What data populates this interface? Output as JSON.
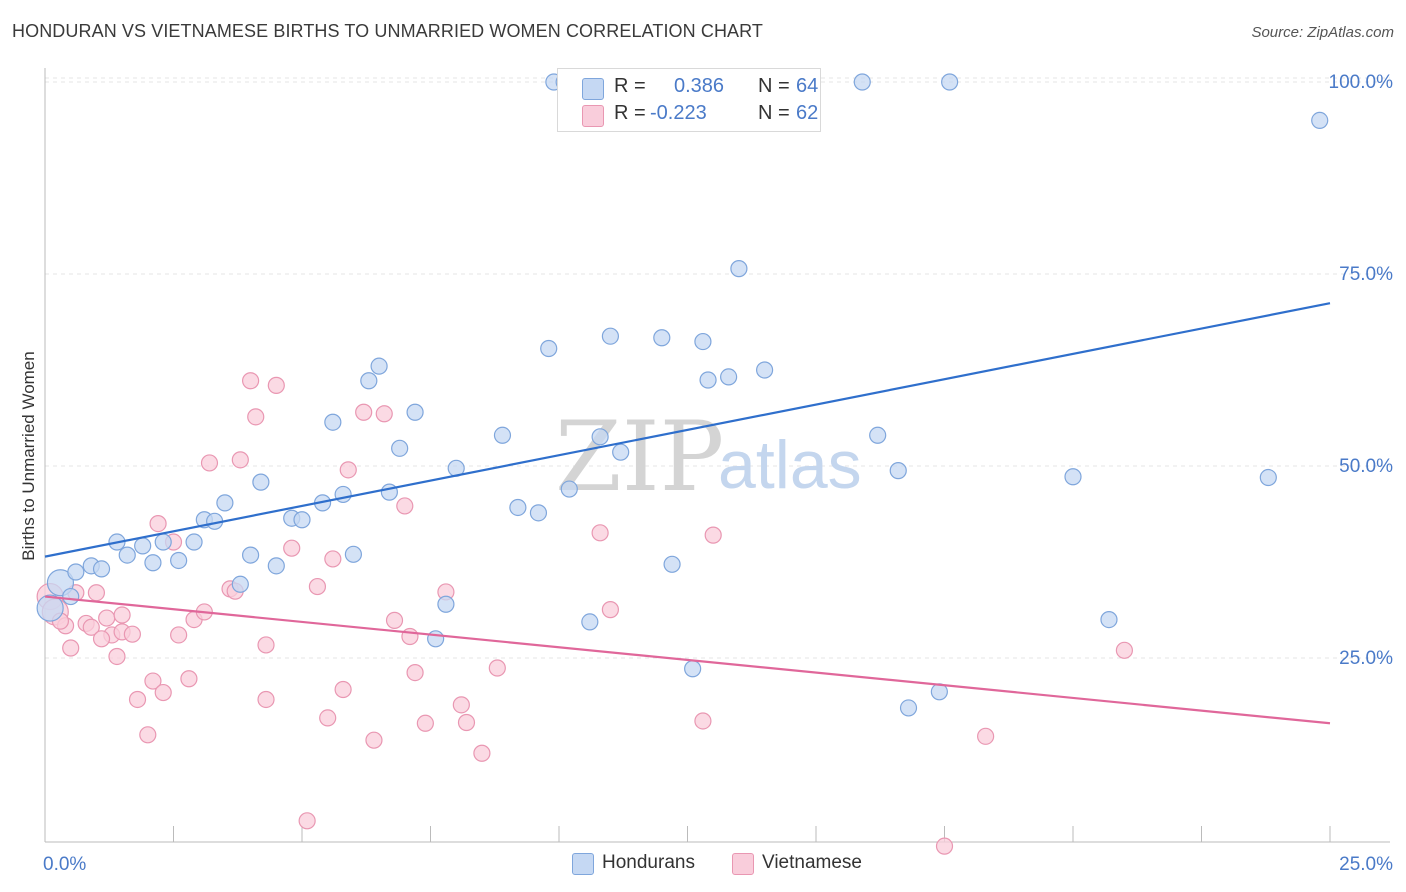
{
  "title": "HONDURAN VS VIETNAMESE BIRTHS TO UNMARRIED WOMEN CORRELATION CHART",
  "source": "Source: ZipAtlas.com",
  "watermark": {
    "zip": "ZIP",
    "atlas": "atlas"
  },
  "legend": {
    "hondurans": {
      "r_label": "R =",
      "r_value": "0.386",
      "n_label": "N =",
      "n_value": "64"
    },
    "vietnamese": {
      "r_label": "R =",
      "r_value": "-0.223",
      "n_label": "N =",
      "n_value": "62"
    }
  },
  "colors": {
    "blue_fill": "#c5d8f3",
    "blue_stroke": "#7fa6dc",
    "blue_line": "#2f6fcc",
    "pink_fill": "#f9cddb",
    "pink_stroke": "#e997b2",
    "pink_line": "#e0679a",
    "tick_label": "#4a7ac8",
    "grid": "#e4e4e4"
  },
  "chart_data": {
    "type": "scatter",
    "title": "HONDURAN VS VIETNAMESE BIRTHS TO UNMARRIED WOMEN CORRELATION CHART",
    "xlabel": "",
    "ylabel": "Births to Unmarried Women",
    "xlim": [
      0,
      25
    ],
    "ylim": [
      0,
      102
    ],
    "x_tick_labels": [
      "0.0%",
      "25.0%"
    ],
    "y_ticks": [
      25,
      50,
      75,
      100
    ],
    "y_tick_labels": [
      "25.0%",
      "50.0%",
      "75.0%",
      "100.0%"
    ],
    "grid": "horizontal dashed",
    "legend_placement": "top-center and bottom",
    "series": [
      {
        "name": "Hondurans",
        "r": 0.386,
        "n": 64,
        "trend": {
          "x": [
            0,
            25
          ],
          "y": [
            38.2,
            71.2
          ]
        },
        "points": [
          [
            0.1,
            31.5
          ],
          [
            0.3,
            34.8
          ],
          [
            0.6,
            36.2
          ],
          [
            0.9,
            37.0
          ],
          [
            1.1,
            36.6
          ],
          [
            1.4,
            40.1
          ],
          [
            1.6,
            38.4
          ],
          [
            1.9,
            39.6
          ],
          [
            2.1,
            37.4
          ],
          [
            2.3,
            40.1
          ],
          [
            2.6,
            37.7
          ],
          [
            2.9,
            40.1
          ],
          [
            3.1,
            43.0
          ],
          [
            3.3,
            42.8
          ],
          [
            3.5,
            45.2
          ],
          [
            3.8,
            34.6
          ],
          [
            4.0,
            38.4
          ],
          [
            4.2,
            47.9
          ],
          [
            4.5,
            37.0
          ],
          [
            4.8,
            43.2
          ],
          [
            5.0,
            43.0
          ],
          [
            5.4,
            45.2
          ],
          [
            5.6,
            55.7
          ],
          [
            5.8,
            46.3
          ],
          [
            6.0,
            38.5
          ],
          [
            6.3,
            61.1
          ],
          [
            6.5,
            63.0
          ],
          [
            6.7,
            46.6
          ],
          [
            6.9,
            52.3
          ],
          [
            7.2,
            57.0
          ],
          [
            7.6,
            27.5
          ],
          [
            7.8,
            32.0
          ],
          [
            8.0,
            49.7
          ],
          [
            8.9,
            54.0
          ],
          [
            9.2,
            44.6
          ],
          [
            9.6,
            43.9
          ],
          [
            9.8,
            65.3
          ],
          [
            9.9,
            100.0
          ],
          [
            10.1,
            100.0
          ],
          [
            10.2,
            47.0
          ],
          [
            10.6,
            29.7
          ],
          [
            10.8,
            53.8
          ],
          [
            11.0,
            66.9
          ],
          [
            11.2,
            51.8
          ],
          [
            11.6,
            100.0
          ],
          [
            12.0,
            66.7
          ],
          [
            12.2,
            37.2
          ],
          [
            12.6,
            23.6
          ],
          [
            12.8,
            66.2
          ],
          [
            12.9,
            61.2
          ],
          [
            13.3,
            61.6
          ],
          [
            13.5,
            75.7
          ],
          [
            14.0,
            62.5
          ],
          [
            15.9,
            100.0
          ],
          [
            16.2,
            54.0
          ],
          [
            16.6,
            49.4
          ],
          [
            16.8,
            18.5
          ],
          [
            17.4,
            20.6
          ],
          [
            17.6,
            100.0
          ],
          [
            20.0,
            48.6
          ],
          [
            20.7,
            30.0
          ],
          [
            23.8,
            48.5
          ],
          [
            24.8,
            95.0
          ],
          [
            0.5,
            33.0
          ]
        ]
      },
      {
        "name": "Vietnamese",
        "r": -0.223,
        "n": 62,
        "trend": {
          "x": [
            0,
            25
          ],
          "y": [
            33.0,
            16.5
          ]
        },
        "points": [
          [
            0.1,
            33.0
          ],
          [
            0.2,
            31.0
          ],
          [
            0.4,
            29.2
          ],
          [
            0.5,
            26.3
          ],
          [
            0.6,
            33.5
          ],
          [
            0.8,
            29.5
          ],
          [
            0.9,
            29.0
          ],
          [
            1.0,
            33.5
          ],
          [
            1.2,
            30.2
          ],
          [
            1.3,
            28.0
          ],
          [
            1.4,
            25.2
          ],
          [
            1.5,
            30.6
          ],
          [
            1.5,
            28.4
          ],
          [
            1.7,
            28.1
          ],
          [
            1.8,
            19.6
          ],
          [
            2.0,
            15.0
          ],
          [
            2.1,
            22.0
          ],
          [
            2.2,
            42.5
          ],
          [
            2.3,
            20.5
          ],
          [
            2.5,
            40.1
          ],
          [
            2.6,
            28.0
          ],
          [
            2.8,
            22.3
          ],
          [
            2.9,
            30.0
          ],
          [
            3.1,
            31.0
          ],
          [
            3.2,
            50.4
          ],
          [
            3.6,
            34.0
          ],
          [
            3.7,
            33.7
          ],
          [
            3.8,
            50.8
          ],
          [
            4.0,
            61.1
          ],
          [
            4.1,
            56.4
          ],
          [
            4.3,
            19.6
          ],
          [
            4.3,
            26.7
          ],
          [
            4.5,
            60.5
          ],
          [
            4.8,
            39.3
          ],
          [
            5.1,
            3.8
          ],
          [
            5.3,
            34.3
          ],
          [
            5.5,
            17.2
          ],
          [
            5.6,
            37.9
          ],
          [
            5.8,
            20.9
          ],
          [
            5.9,
            49.5
          ],
          [
            6.2,
            57.0
          ],
          [
            6.4,
            14.3
          ],
          [
            6.6,
            56.8
          ],
          [
            6.8,
            29.9
          ],
          [
            7.0,
            44.8
          ],
          [
            7.1,
            27.8
          ],
          [
            7.2,
            23.1
          ],
          [
            7.4,
            16.5
          ],
          [
            7.8,
            33.6
          ],
          [
            8.1,
            18.9
          ],
          [
            8.2,
            16.6
          ],
          [
            8.5,
            12.6
          ],
          [
            8.8,
            23.7
          ],
          [
            10.8,
            41.3
          ],
          [
            11.0,
            31.3
          ],
          [
            12.8,
            16.8
          ],
          [
            13.0,
            41.0
          ],
          [
            17.5,
            0.5
          ],
          [
            18.3,
            14.8
          ],
          [
            21.0,
            26.0
          ],
          [
            0.3,
            29.8
          ],
          [
            1.1,
            27.5
          ]
        ]
      }
    ]
  }
}
